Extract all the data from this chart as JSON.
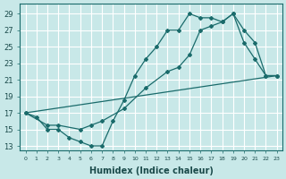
{
  "xlabel": "Humidex (Indice chaleur)",
  "bg_color": "#c8e8e8",
  "grid_color": "#ffffff",
  "line_color": "#1a6b6b",
  "xlim": [
    -0.5,
    23.5
  ],
  "ylim": [
    12.5,
    30.2
  ],
  "xticks": [
    0,
    1,
    2,
    3,
    4,
    5,
    6,
    7,
    8,
    9,
    10,
    11,
    12,
    13,
    14,
    15,
    16,
    17,
    18,
    19,
    20,
    21,
    22,
    23
  ],
  "yticks": [
    13,
    15,
    17,
    19,
    21,
    23,
    25,
    27,
    29
  ],
  "line1_x": [
    0,
    1,
    2,
    3,
    4,
    5,
    6,
    7,
    8,
    9,
    10,
    11,
    12,
    13,
    14,
    15,
    16,
    17,
    18,
    19,
    20,
    21,
    22,
    23
  ],
  "line1_y": [
    17,
    16.5,
    15,
    15,
    14,
    13.5,
    13,
    13,
    16,
    18.5,
    21.5,
    23.5,
    25,
    27,
    27,
    29,
    28.5,
    28.5,
    28,
    29,
    25.5,
    23.5,
    21.5,
    21.5
  ],
  "line2_x": [
    0,
    2,
    3,
    5,
    6,
    7,
    9,
    11,
    13,
    14,
    15,
    16,
    17,
    18,
    19,
    20,
    21,
    22,
    23
  ],
  "line2_y": [
    17,
    15.5,
    15.5,
    15,
    15.5,
    16,
    17.5,
    20,
    22,
    22.5,
    24,
    27,
    27.5,
    28,
    29,
    27,
    25.5,
    21.5,
    21.5
  ],
  "line3_x": [
    0,
    23
  ],
  "line3_y": [
    17,
    21.5
  ]
}
